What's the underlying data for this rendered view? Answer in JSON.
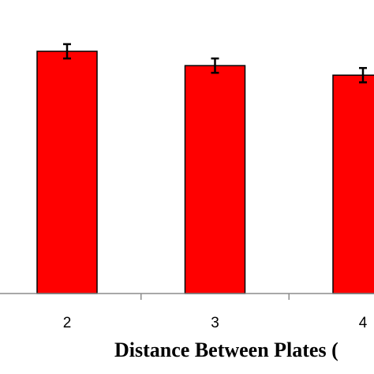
{
  "chart_data": {
    "type": "bar",
    "categories": [
      "2",
      "3",
      "4"
    ],
    "values": [
      1.32,
      1.2,
      1.12
    ],
    "errors": [
      0.06,
      0.06,
      0.06
    ],
    "xlabel": "Distance Between Plates (",
    "ylabel": "",
    "ylim": [
      -0.71,
      1.75
    ],
    "grid": false,
    "legend": "none",
    "colors": {
      "bar": "#ff0000",
      "bar_edge": "#000000",
      "axis": "#8c8c8c"
    }
  }
}
